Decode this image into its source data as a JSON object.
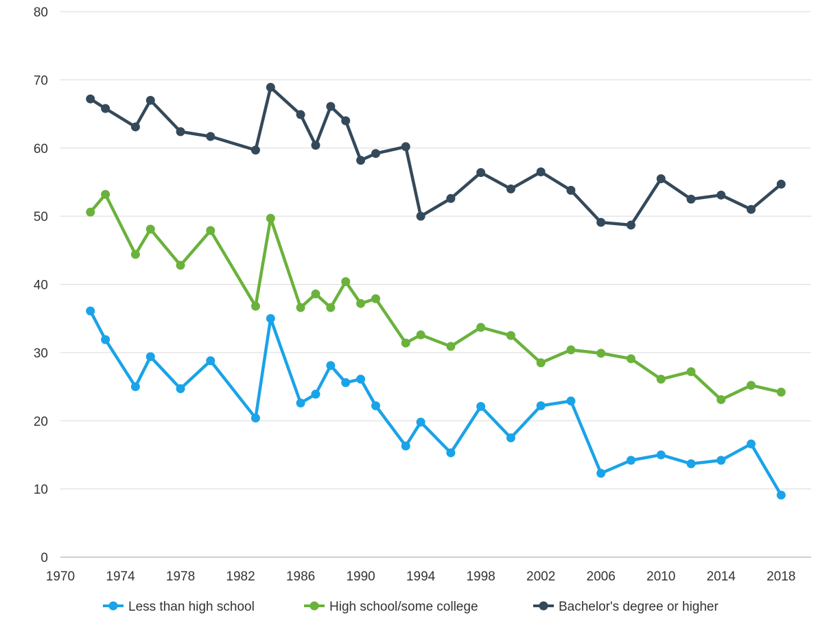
{
  "chart_data": {
    "type": "line",
    "title": "",
    "xlabel": "",
    "ylabel": "",
    "xlim": [
      1970,
      2020
    ],
    "ylim": [
      0,
      80
    ],
    "x_ticks": [
      "1970",
      "1974",
      "1978",
      "1982",
      "1986",
      "1990",
      "1994",
      "1998",
      "2002",
      "2006",
      "2010",
      "2014",
      "2018"
    ],
    "y_ticks": [
      "0",
      "10",
      "20",
      "30",
      "40",
      "50",
      "60",
      "70",
      "80"
    ],
    "grid": "horizontal",
    "legend_position": "bottom",
    "series": [
      {
        "name": "Less than high school",
        "color": "#1aa3e8",
        "points": [
          [
            1972,
            36.1
          ],
          [
            1973,
            31.9
          ],
          [
            1975,
            25.0
          ],
          [
            1976,
            29.4
          ],
          [
            1978,
            24.7
          ],
          [
            1980,
            28.8
          ],
          [
            1983,
            20.4
          ],
          [
            1984,
            35.0
          ],
          [
            1986,
            22.6
          ],
          [
            1987,
            23.9
          ],
          [
            1988,
            28.1
          ],
          [
            1989,
            25.6
          ],
          [
            1990,
            26.1
          ],
          [
            1991,
            22.2
          ],
          [
            1993,
            16.3
          ],
          [
            1994,
            19.8
          ],
          [
            1996,
            15.3
          ],
          [
            1998,
            22.1
          ],
          [
            2000,
            17.5
          ],
          [
            2002,
            22.2
          ],
          [
            2004,
            22.9
          ],
          [
            2006,
            12.3
          ],
          [
            2008,
            14.2
          ],
          [
            2010,
            15.0
          ],
          [
            2012,
            13.7
          ],
          [
            2014,
            14.2
          ],
          [
            2016,
            16.6
          ],
          [
            2018,
            9.1
          ]
        ]
      },
      {
        "name": "High school/some college",
        "color": "#6ab23c",
        "points": [
          [
            1972,
            50.6
          ],
          [
            1973,
            53.2
          ],
          [
            1975,
            44.4
          ],
          [
            1976,
            48.1
          ],
          [
            1978,
            42.8
          ],
          [
            1980,
            47.9
          ],
          [
            1983,
            36.8
          ],
          [
            1984,
            49.7
          ],
          [
            1986,
            36.6
          ],
          [
            1987,
            38.6
          ],
          [
            1988,
            36.6
          ],
          [
            1989,
            40.4
          ],
          [
            1990,
            37.2
          ],
          [
            1991,
            37.9
          ],
          [
            1993,
            31.4
          ],
          [
            1994,
            32.6
          ],
          [
            1996,
            30.9
          ],
          [
            1998,
            33.7
          ],
          [
            2000,
            32.5
          ],
          [
            2002,
            28.5
          ],
          [
            2004,
            30.4
          ],
          [
            2006,
            29.9
          ],
          [
            2008,
            29.1
          ],
          [
            2010,
            26.1
          ],
          [
            2012,
            27.2
          ],
          [
            2014,
            23.1
          ],
          [
            2016,
            25.2
          ],
          [
            2018,
            24.2
          ]
        ]
      },
      {
        "name": "Bachelor's degree or higher",
        "color": "#34495a",
        "points": [
          [
            1972,
            67.2
          ],
          [
            1973,
            65.8
          ],
          [
            1975,
            63.1
          ],
          [
            1976,
            67.0
          ],
          [
            1978,
            62.4
          ],
          [
            1980,
            61.7
          ],
          [
            1983,
            59.7
          ],
          [
            1984,
            68.9
          ],
          [
            1986,
            64.9
          ],
          [
            1987,
            60.4
          ],
          [
            1988,
            66.1
          ],
          [
            1989,
            64.0
          ],
          [
            1990,
            58.2
          ],
          [
            1991,
            59.2
          ],
          [
            1993,
            60.2
          ],
          [
            1994,
            50.0
          ],
          [
            1996,
            52.6
          ],
          [
            1998,
            56.4
          ],
          [
            2000,
            54.0
          ],
          [
            2002,
            56.5
          ],
          [
            2004,
            53.8
          ],
          [
            2006,
            49.1
          ],
          [
            2008,
            48.7
          ],
          [
            2010,
            55.5
          ],
          [
            2012,
            52.5
          ],
          [
            2014,
            53.1
          ],
          [
            2016,
            51.0
          ],
          [
            2018,
            54.7
          ]
        ]
      }
    ]
  }
}
